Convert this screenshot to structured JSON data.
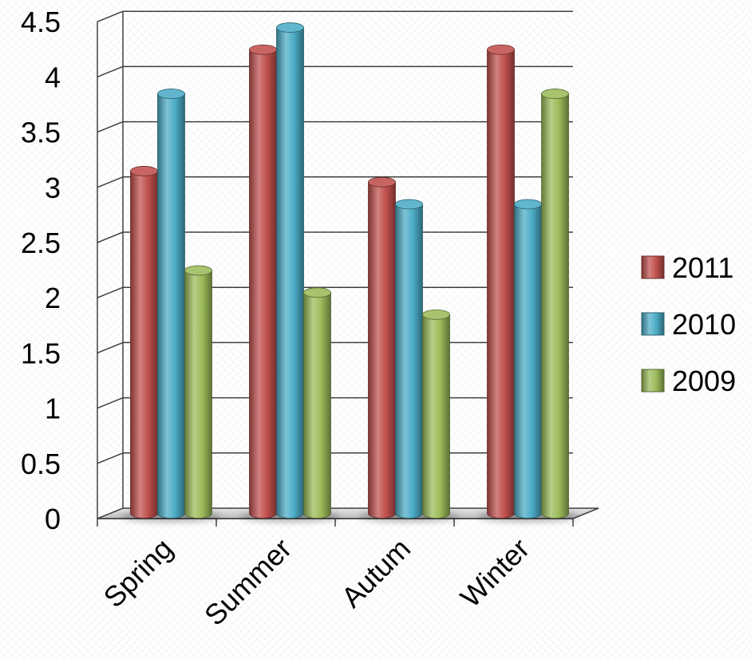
{
  "chart_data": {
    "type": "bar",
    "categories": [
      "Spring",
      "Summer",
      "Autum",
      "Winter"
    ],
    "series": [
      {
        "name": "2011",
        "values": [
          3.1,
          4.2,
          3.0,
          4.2
        ],
        "color": "#c0504d"
      },
      {
        "name": "2010",
        "values": [
          3.8,
          4.4,
          2.8,
          2.8
        ],
        "color": "#4bacc6"
      },
      {
        "name": "2009",
        "values": [
          2.2,
          2.0,
          1.8,
          3.8
        ],
        "color": "#9bbb59"
      }
    ],
    "yticks": [
      "0",
      "0.5",
      "1",
      "1.5",
      "2",
      "2.5",
      "3",
      "3.5",
      "4",
      "4.5"
    ],
    "ylim": [
      0,
      4.5
    ],
    "grid": true,
    "legend_position": "right",
    "bar_shape": "cylinder"
  }
}
